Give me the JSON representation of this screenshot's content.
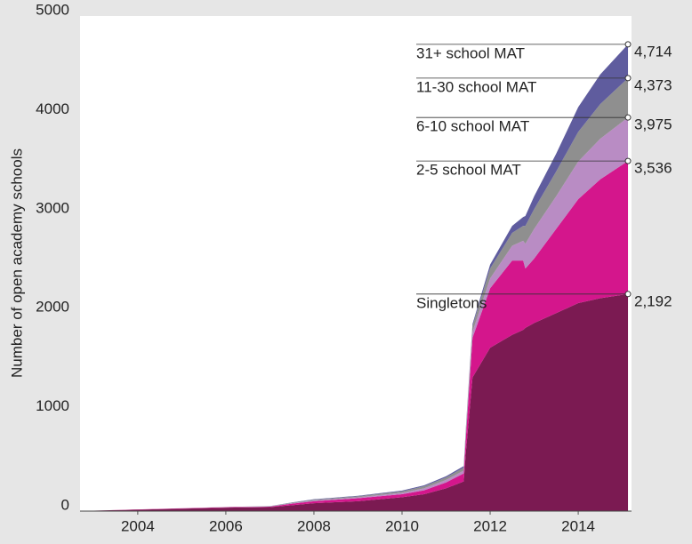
{
  "chart_data": {
    "type": "stacked_area",
    "ylabel": "Number of open academy schools",
    "x": [
      2003,
      2004,
      2005,
      2006,
      2007,
      2007.5,
      2008,
      2009,
      2010,
      2010.5,
      2011,
      2011.4,
      2011.45,
      2011.6,
      2012,
      2012.5,
      2012.75,
      2012.8,
      2013,
      2013.5,
      2014,
      2014.5,
      2015.13
    ],
    "series": [
      {
        "name": "Singletons",
        "color": "#7b1a52",
        "values": [
          5,
          15,
          25,
          35,
          40,
          60,
          80,
          100,
          140,
          170,
          230,
          300,
          600,
          1350,
          1650,
          1780,
          1830,
          1850,
          1900,
          2000,
          2100,
          2150,
          2192
        ]
      },
      {
        "name": "2-5 school MAT",
        "color": "#d4168c",
        "values": [
          0,
          2,
          3,
          4,
          5,
          15,
          20,
          30,
          30,
          40,
          60,
          80,
          150,
          400,
          600,
          750,
          700,
          600,
          650,
          850,
          1050,
          1200,
          1344
        ]
      },
      {
        "name": "6-10 school MAT",
        "color": "#b98cc4",
        "values": [
          0,
          0,
          1,
          1,
          2,
          5,
          8,
          10,
          15,
          20,
          25,
          30,
          40,
          60,
          100,
          150,
          200,
          250,
          300,
          330,
          380,
          410,
          439
        ]
      },
      {
        "name": "11-30 school MAT",
        "color": "#8f8f8f",
        "values": [
          0,
          0,
          0,
          1,
          2,
          5,
          8,
          10,
          15,
          20,
          25,
          30,
          40,
          60,
          100,
          130,
          150,
          180,
          200,
          250,
          300,
          350,
          398
        ]
      },
      {
        "name": "31+ school MAT",
        "color": "#5f5c9e",
        "values": [
          0,
          0,
          0,
          0,
          1,
          3,
          4,
          5,
          8,
          10,
          12,
          15,
          20,
          20,
          40,
          70,
          90,
          100,
          130,
          180,
          250,
          300,
          341
        ]
      }
    ],
    "annotations": [
      {
        "value": 2192,
        "label": "2,192"
      },
      {
        "value": 3536,
        "label": "3,536"
      },
      {
        "value": 3975,
        "label": "3,975"
      },
      {
        "value": 4373,
        "label": "4,373"
      },
      {
        "value": 4714,
        "label": "4,714"
      }
    ],
    "xlim": [
      2002.69,
      2015.21
    ],
    "xticks": [
      2004,
      2006,
      2008,
      2010,
      2012,
      2014
    ],
    "ylim": [
      0,
      5000
    ],
    "yticks": [
      0,
      1000,
      2000,
      3000,
      4000,
      5000
    ]
  }
}
